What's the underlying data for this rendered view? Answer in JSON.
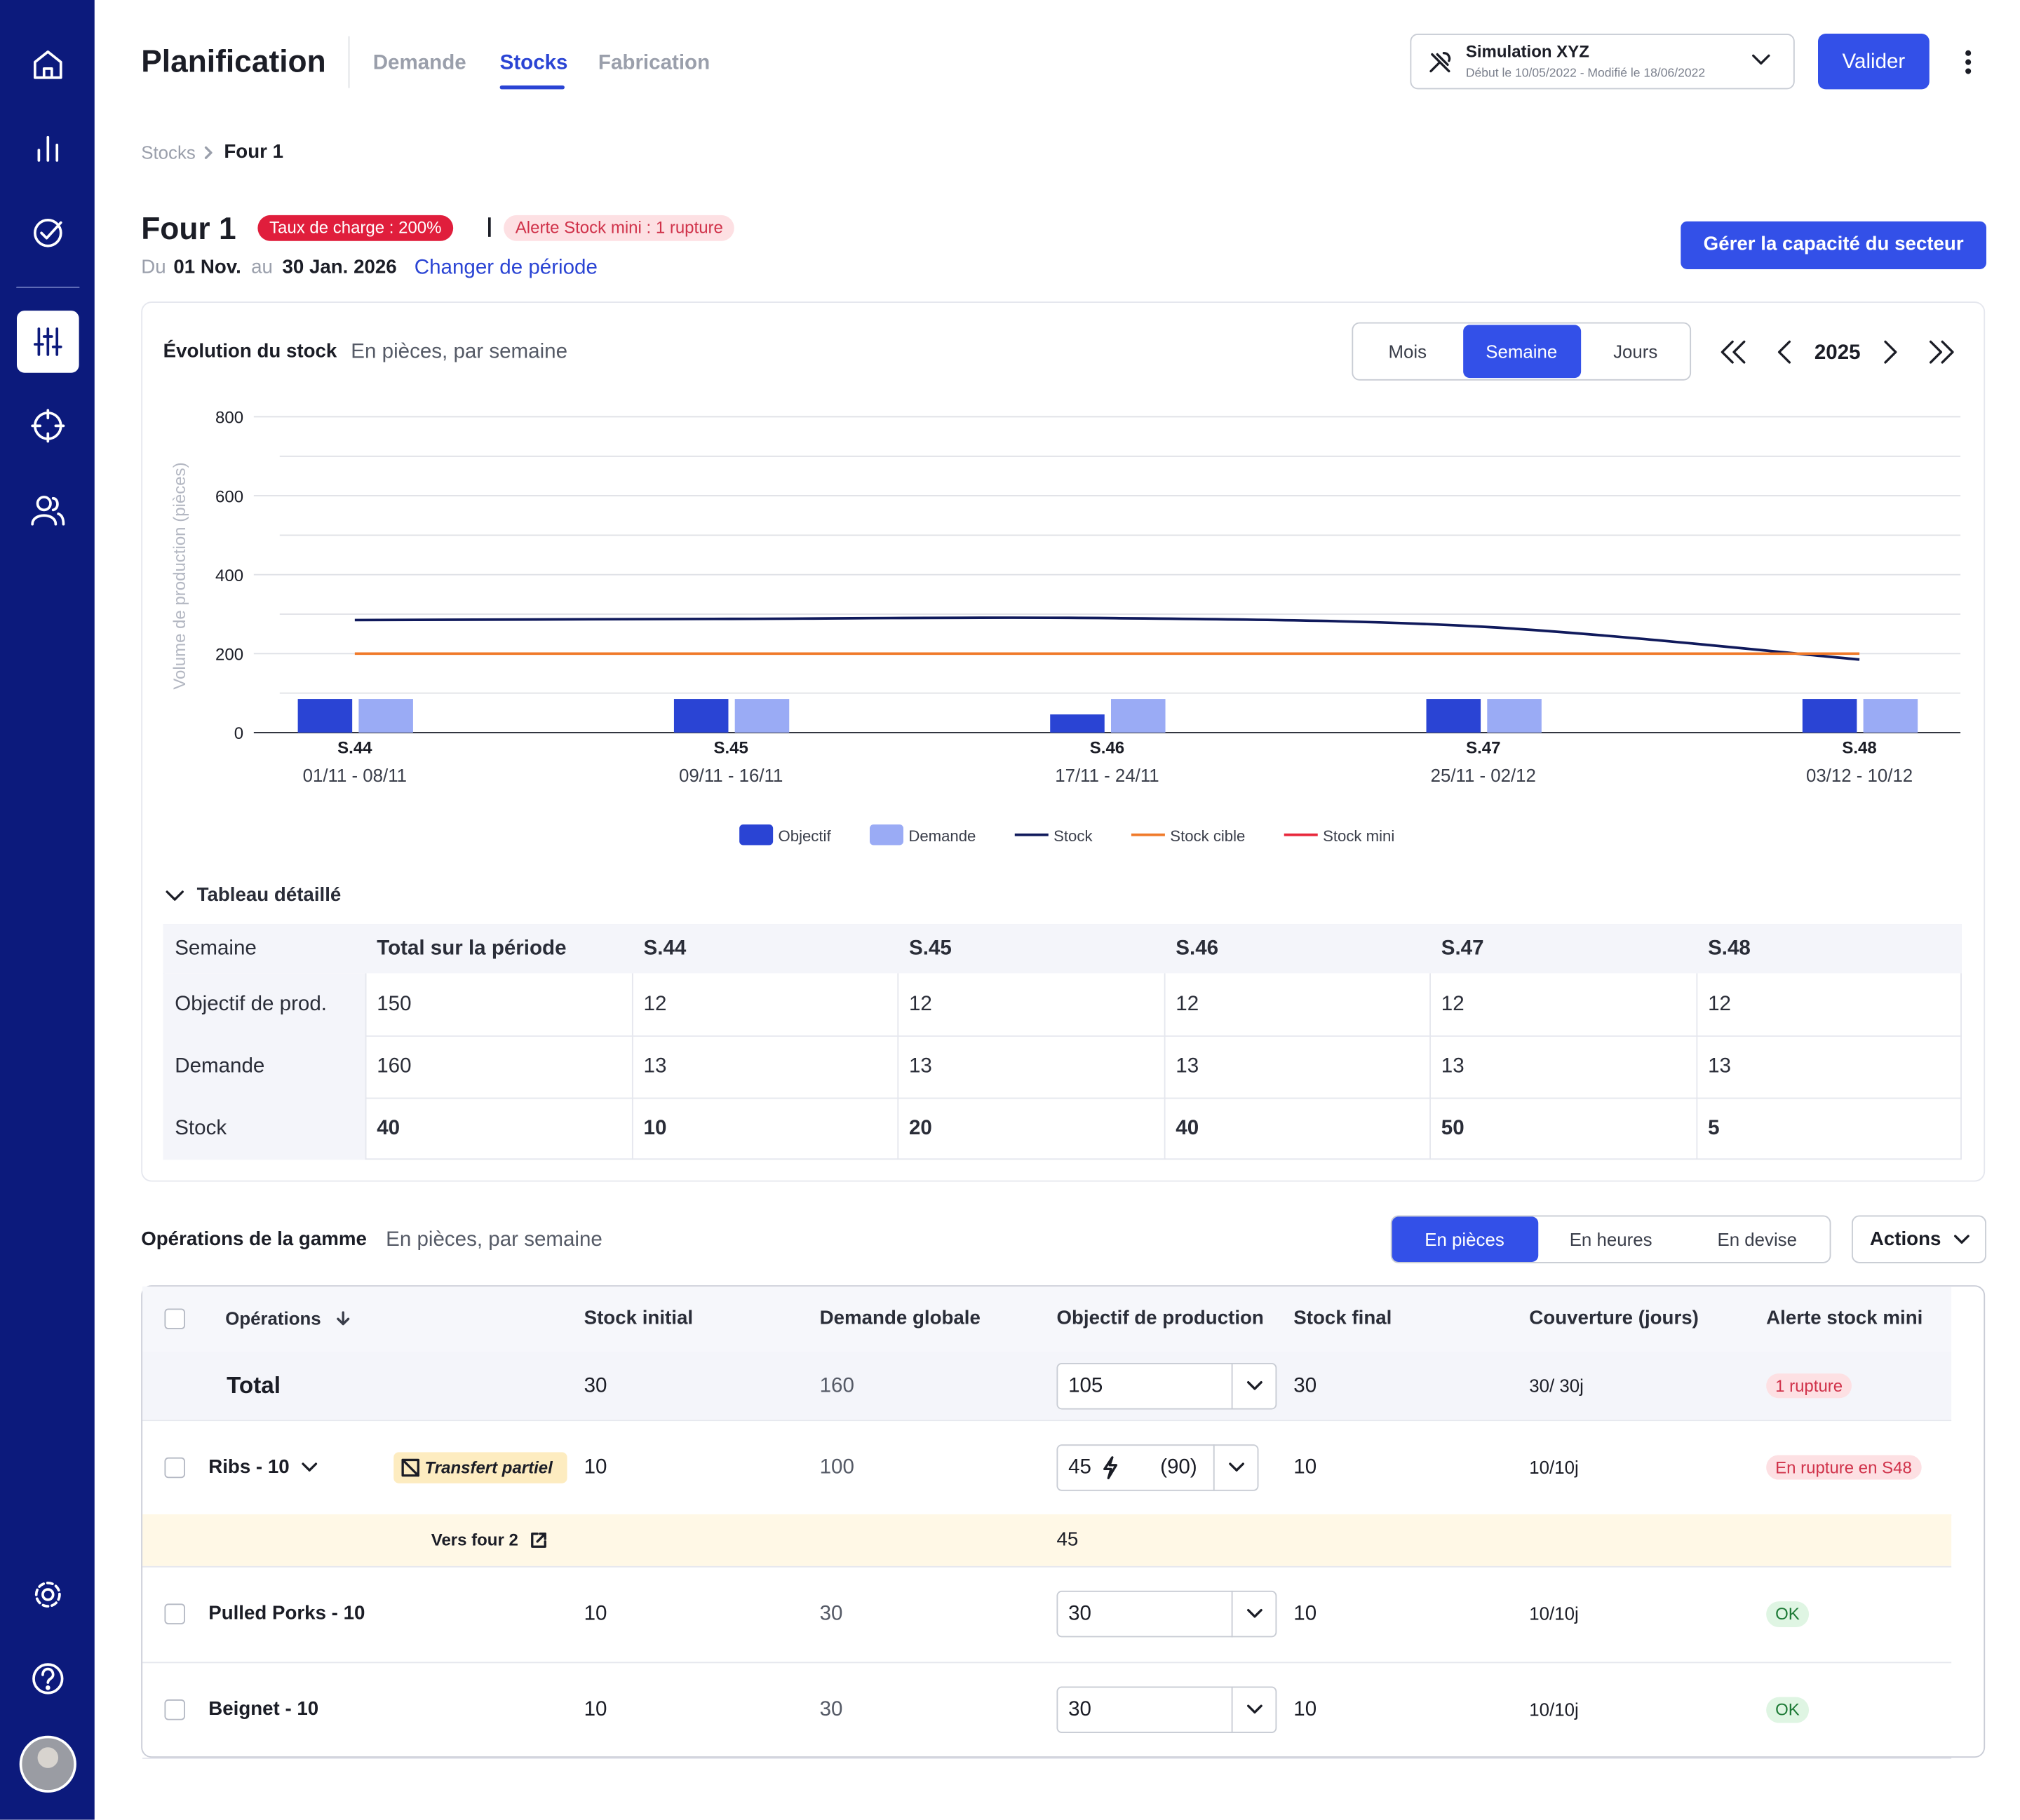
{
  "nav": {
    "title": "Planification",
    "tabs": [
      "Demande",
      "Stocks",
      "Fabrication"
    ],
    "active_tab": 1
  },
  "simulation": {
    "name": "Simulation XYZ",
    "dates": "Début le 10/05/2022 - Modifié le 18/06/2022"
  },
  "validate": "Valider",
  "breadcrumb": [
    "Stocks",
    "Four 1"
  ],
  "header": {
    "title": "Four 1",
    "badge_charge": "Taux de charge : 200%",
    "badge_alert": "Alerte Stock mini : 1 rupture",
    "period_from_label": "Du",
    "period_from": "01 Nov.",
    "period_to_label": "au",
    "period_to": "30 Jan. 2026",
    "period_link": "Changer de période",
    "capacity_button": "Gérer la capacité du secteur"
  },
  "chart_controls": {
    "granularity": [
      "Mois",
      "Semaine",
      "Jours"
    ],
    "active": 1,
    "year": "2025"
  },
  "chart_data": {
    "type": "bar",
    "title": "Évolution du stock",
    "subtitle": "En pièces, par semaine",
    "y_label": "Volume de production (pièces)",
    "categories": [
      "S.44",
      "S.45",
      "S.46",
      "S.47",
      "S.48"
    ],
    "category_dates": [
      "01/11 - 08/11",
      "09/11 - 16/11",
      "17/11 - 24/11",
      "25/11 - 02/12",
      "03/12 - 10/12"
    ],
    "ylim": [
      0,
      800
    ],
    "yticks": [
      0,
      200,
      400,
      600,
      800
    ],
    "minor_yticks": [
      100,
      300,
      500,
      700
    ],
    "grid": true,
    "series": [
      {
        "name": "Objectif",
        "type": "bar",
        "color": "#2a44d4",
        "values": [
          85,
          85,
          46,
          85,
          85
        ]
      },
      {
        "name": "Demande",
        "type": "bar",
        "color": "#9aabf5",
        "values": [
          85,
          85,
          85,
          85,
          85
        ]
      },
      {
        "name": "Stock",
        "type": "line",
        "color": "#101a5c",
        "values": [
          285,
          288,
          290,
          268,
          185
        ]
      },
      {
        "name": "Stock cible",
        "type": "line",
        "color": "#f07a2a",
        "values": [
          200,
          200,
          200,
          200,
          200
        ]
      },
      {
        "name": "Stock mini",
        "type": "line",
        "color": "#e8283c"
      }
    ]
  },
  "detail_table": {
    "title": "Tableau détaillé",
    "header": [
      "Semaine",
      "Total sur la période",
      "S.44",
      "S.45",
      "S.46",
      "S.47",
      "S.48"
    ],
    "rows": [
      [
        "Objectif de prod.",
        "150",
        "12",
        "12",
        "12",
        "12",
        "12"
      ],
      [
        "Demande",
        "160",
        "13",
        "13",
        "13",
        "13",
        "13"
      ],
      [
        "Stock",
        "40",
        "10",
        "20",
        "40",
        "50",
        "5"
      ]
    ]
  },
  "operations": {
    "title": "Opérations de la gamme",
    "subtitle": "En pièces, par semaine",
    "units": [
      "En pièces",
      "En heures",
      "En devise"
    ],
    "active_unit": 0,
    "actions": "Actions",
    "columns": [
      "Opérations",
      "Stock initial",
      "Demande globale",
      "Objectif de production",
      "Stock final",
      "Couverture (jours)",
      "Alerte stock mini"
    ],
    "rows": [
      {
        "name": "Total",
        "stock_initial": "30",
        "demande_globale": "160",
        "objectif": "105",
        "stock_final": "30",
        "couverture": "30/ 30j",
        "alerte": "1 rupture",
        "alerte_style": "danger"
      },
      {
        "name": "Ribs - 10",
        "tag": "Transfert partiel",
        "stock_initial": "10",
        "demande_globale": "100",
        "objectif": "45",
        "objectif_max": "(90)",
        "stock_final": "10",
        "couverture": "10/10j",
        "alerte": "En rupture en S48",
        "alerte_style": "danger"
      },
      {
        "sub": "Vers four 2",
        "objectif": "45"
      },
      {
        "name": "Pulled Porks - 10",
        "stock_initial": "10",
        "demande_globale": "30",
        "objectif": "30",
        "stock_final": "10",
        "couverture": "10/10j",
        "alerte": "OK",
        "alerte_style": "ok"
      },
      {
        "name": "Beignet - 10",
        "stock_initial": "10",
        "demande_globale": "30",
        "objectif": "30",
        "stock_final": "10",
        "couverture": "10/10j",
        "alerte": "OK",
        "alerte_style": "ok"
      }
    ]
  }
}
